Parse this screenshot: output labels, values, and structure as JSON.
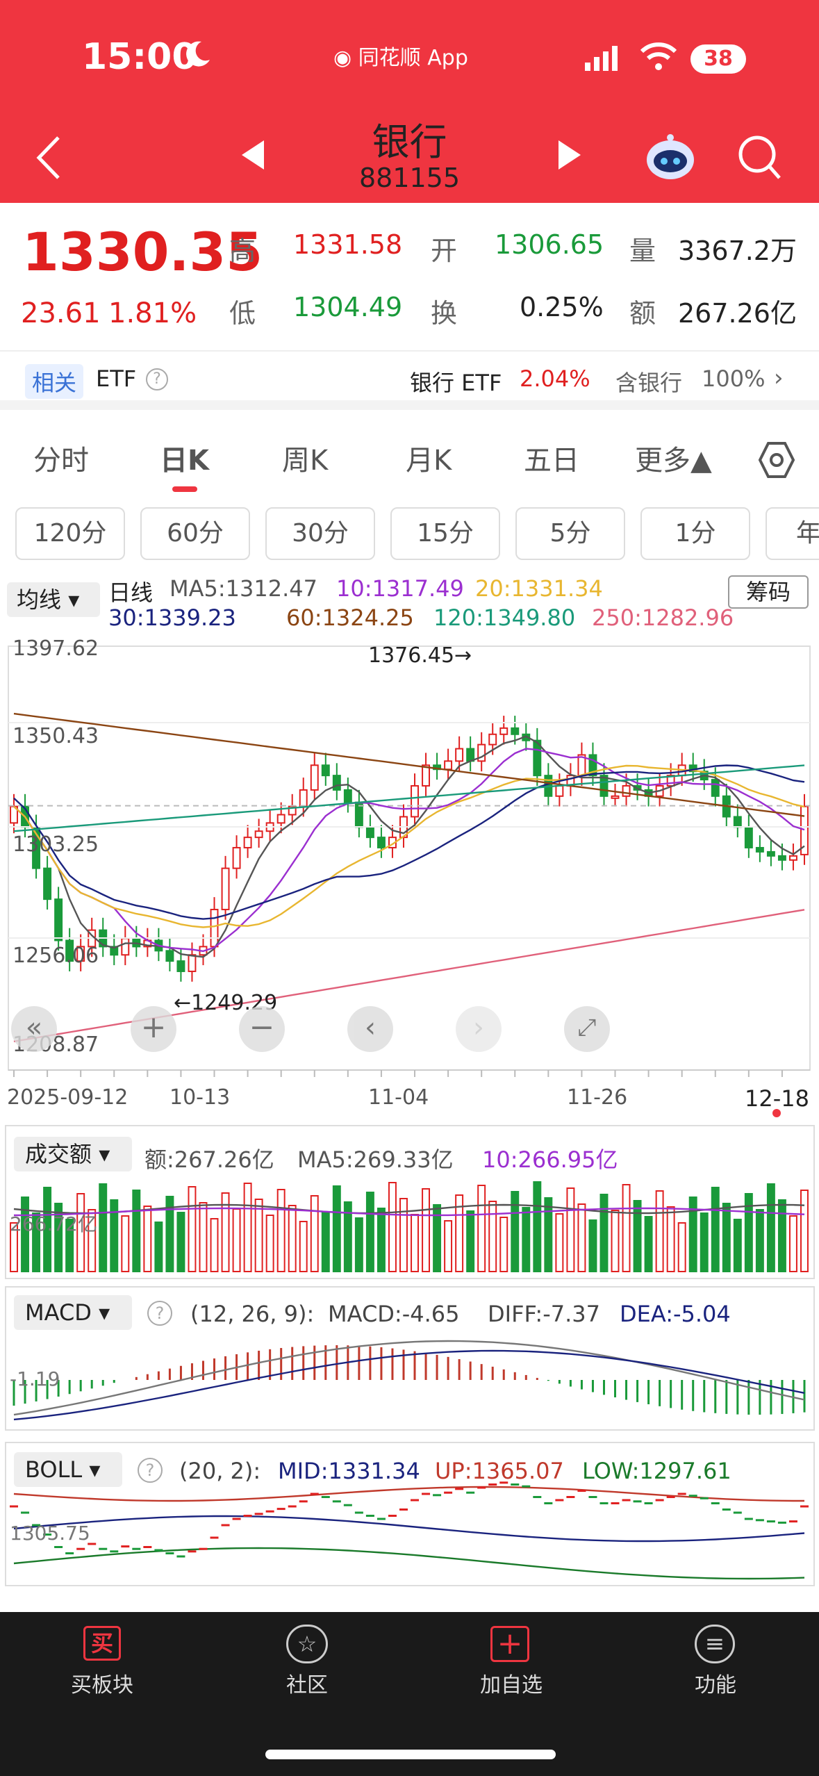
{
  "status": {
    "time": "15:00",
    "app": "同花顺 App",
    "battery": "38"
  },
  "header": {
    "title": "银行",
    "code": "881155"
  },
  "quote": {
    "price": "1330.35",
    "change": "23.61",
    "pct": "1.81%",
    "high_label": "高",
    "high": "1331.58",
    "low_label": "低",
    "low": "1304.49",
    "open_label": "开",
    "open": "1306.65",
    "turn_label": "换",
    "turn": "0.25%",
    "vol_label": "量",
    "vol": "3367.2万",
    "amt_label": "额",
    "amt": "267.26亿"
  },
  "etf": {
    "tag": "相关",
    "name": "ETF",
    "bank_etf": "银行 ETF",
    "bank_pct": "2.04%",
    "contains": "含银行",
    "contains_pct": "100%"
  },
  "tabs": [
    "分时",
    "日K",
    "周K",
    "月K",
    "五日",
    "更多▲"
  ],
  "selected_tab": "日K",
  "periods": [
    "120分",
    "60分",
    "30分",
    "15分",
    "5分",
    "1分",
    "年"
  ],
  "ma": {
    "selector": "均线",
    "kind": "日线",
    "ma5": "MA5:1312.47",
    "ma10": "10:1317.49",
    "ma20": "20:1331.34",
    "ma30": "30:1339.23",
    "ma60": "60:1324.25",
    "ma120": "120:1349.80",
    "ma250": "250:1282.96",
    "chip": "筹码"
  },
  "axis": {
    "y": [
      "1397.62",
      "1350.43",
      "1303.25",
      "1256.06",
      "1208.87"
    ],
    "x": [
      "2025-09-12",
      "10-13",
      "11-04",
      "11-26",
      "12-18"
    ],
    "max_note": "1376.45→",
    "min_note": "←1249.29"
  },
  "volume": {
    "selector": "成交额",
    "amt": "额:267.26亿",
    "ma5": "MA5:269.33亿",
    "ma10": "10:266.95亿",
    "scale": "266.72亿"
  },
  "macd": {
    "selector": "MACD",
    "params": "(12, 26, 9):",
    "macd": "MACD:-4.65",
    "diff": "DIFF:-7.37",
    "dea": "DEA:-5.04",
    "scale": "-1.19"
  },
  "boll": {
    "selector": "BOLL",
    "params": "(20, 2):",
    "mid": "MID:1331.34",
    "up": "UP:1365.07",
    "low": "LOW:1297.61",
    "scale": "1305.75"
  },
  "nav": [
    "买板块",
    "社区",
    "加自选",
    "功能"
  ],
  "colors": {
    "brand": "#ef3540",
    "up": "#e02020",
    "down": "#1a9a3a",
    "ma5": "#555555",
    "ma10": "#9b2fd0",
    "ma20": "#e8b630",
    "ma30": "#1a237e",
    "ma60": "#8b4513",
    "ma120": "#1a9a7a",
    "ma250": "#e0607a"
  },
  "chart_data": {
    "type": "candlestick",
    "x_range": [
      "2025-09-12",
      "12-18"
    ],
    "ylim": [
      1208.87,
      1397.62
    ],
    "closes": [
      1330,
      1320,
      1300,
      1285,
      1265,
      1255,
      1262,
      1270,
      1262,
      1258,
      1266,
      1262,
      1265,
      1260,
      1255,
      1250,
      1258,
      1262,
      1280,
      1300,
      1310,
      1315,
      1318,
      1322,
      1326,
      1330,
      1338,
      1350,
      1345,
      1338,
      1332,
      1320,
      1315,
      1310,
      1315,
      1325,
      1340,
      1350,
      1348,
      1352,
      1358,
      1352,
      1360,
      1365,
      1368,
      1365,
      1362,
      1345,
      1335,
      1340,
      1345,
      1355,
      1345,
      1335,
      1335,
      1340,
      1338,
      1335,
      1340,
      1345,
      1350,
      1347,
      1343,
      1335,
      1325,
      1320,
      1310,
      1308,
      1306,
      1304,
      1306,
      1330
    ]
  }
}
